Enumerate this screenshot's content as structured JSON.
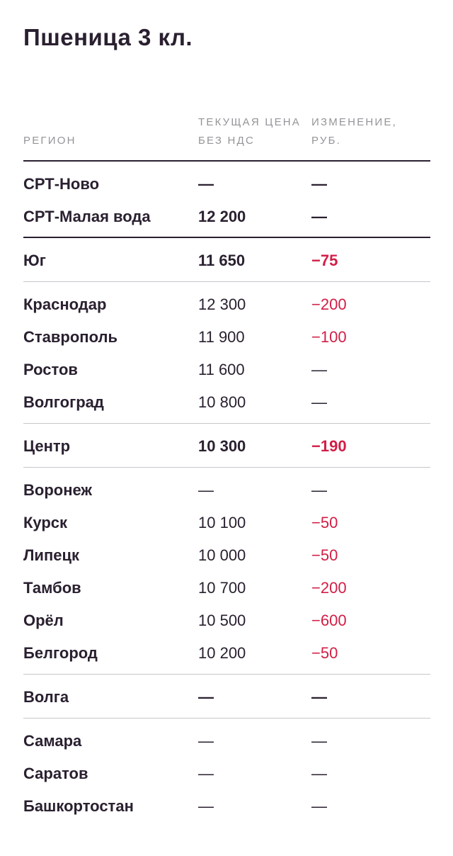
{
  "title": "Пшеница 3 кл.",
  "headers": {
    "region": "РЕГИОН",
    "price": "ТЕКУЩАЯ ЦЕНА БЕЗ НДС",
    "change": "ИЗМЕНЕНИЕ, РУБ."
  },
  "rows": [
    {
      "region": "СРТ-Ново",
      "price": "—",
      "change": "—",
      "bold": true,
      "neg": false
    },
    {
      "region": "СРТ-Малая вода",
      "price": "12 200",
      "change": "—",
      "bold": true,
      "neg": false
    },
    {
      "region": "Юг",
      "price": "11 650",
      "change": "−75",
      "bold": true,
      "neg": true
    },
    {
      "region": "Краснодар",
      "price": "12 300",
      "change": "−200",
      "bold": false,
      "neg": true
    },
    {
      "region": "Ставрополь",
      "price": "11 900",
      "change": "−100",
      "bold": false,
      "neg": true
    },
    {
      "region": "Ростов",
      "price": "11 600",
      "change": "—",
      "bold": false,
      "neg": false
    },
    {
      "region": "Волгоград",
      "price": "10 800",
      "change": "—",
      "bold": false,
      "neg": false
    },
    {
      "region": "Центр",
      "price": "10 300",
      "change": "−190",
      "bold": true,
      "neg": true
    },
    {
      "region": "Воронеж",
      "price": "—",
      "change": "—",
      "bold": false,
      "neg": false
    },
    {
      "region": "Курск",
      "price": "10 100",
      "change": "−50",
      "bold": false,
      "neg": true
    },
    {
      "region": "Липецк",
      "price": "10 000",
      "change": "−50",
      "bold": false,
      "neg": true
    },
    {
      "region": "Тамбов",
      "price": "10 700",
      "change": "−200",
      "bold": false,
      "neg": true
    },
    {
      "region": "Орёл",
      "price": "10 500",
      "change": "−600",
      "bold": false,
      "neg": true
    },
    {
      "region": "Белгород",
      "price": "10 200",
      "change": "−50",
      "bold": false,
      "neg": true
    },
    {
      "region": "Волга",
      "price": "—",
      "change": "—",
      "bold": true,
      "neg": false
    },
    {
      "region": "Самара",
      "price": "—",
      "change": "—",
      "bold": false,
      "neg": false
    },
    {
      "region": "Саратов",
      "price": "—",
      "change": "—",
      "bold": false,
      "neg": false
    },
    {
      "region": "Башкортостан",
      "price": "—",
      "change": "—",
      "bold": false,
      "neg": false
    }
  ],
  "colors": {
    "text": "#2a2030",
    "header": "#97939a",
    "negative": "#d21e46",
    "divider": "#c9c6cb"
  }
}
